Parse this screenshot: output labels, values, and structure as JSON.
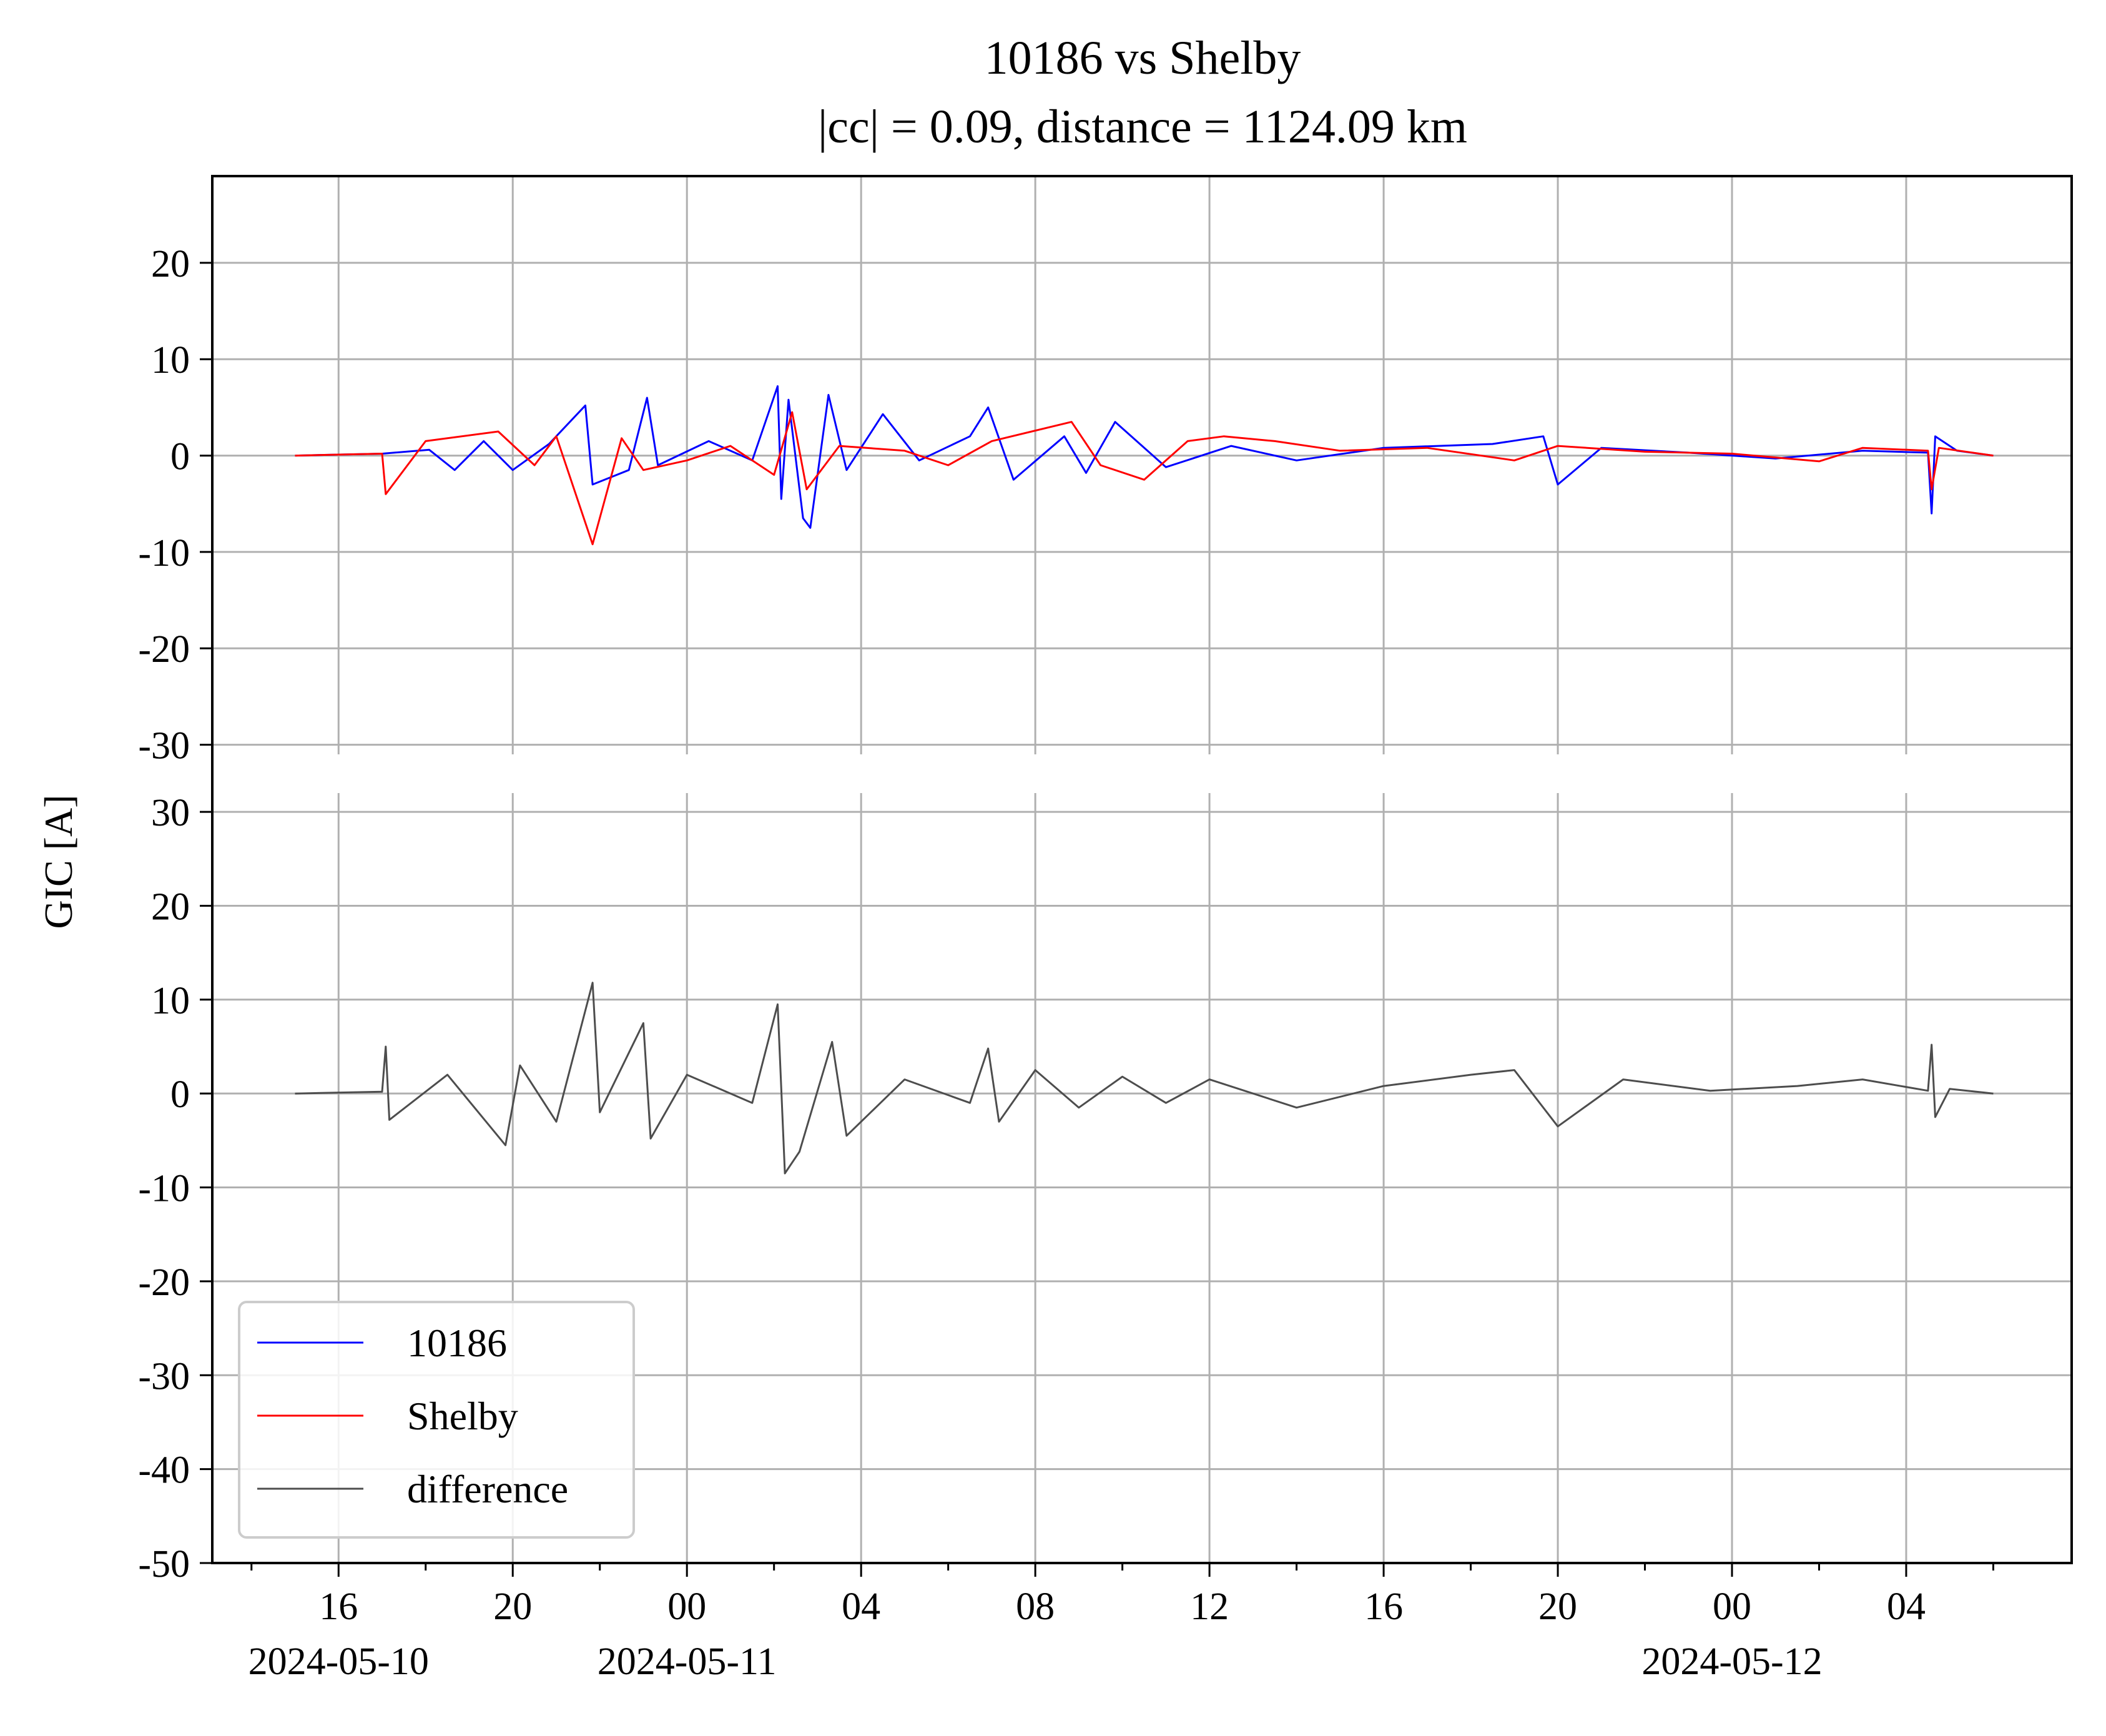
{
  "title": "10186 vs Shelby",
  "subtitle": "|cc| = 0.09, distance = 1124.09 km",
  "ylabel": "GIC [A]",
  "colors": {
    "series_10186": "#0000ff",
    "series_shelby": "#ff0000",
    "series_difference": "#4d4d4d",
    "grid": "#b0b0b0",
    "frame": "#000000"
  },
  "chart_data": [
    {
      "type": "line",
      "panel": "top",
      "x_unit": "time",
      "x_range": [
        "2024-05-10 13:06",
        "2024-05-12 07:48"
      ],
      "x_ticks": [
        "16",
        "20",
        "00",
        "04",
        "08",
        "12",
        "16",
        "20",
        "00",
        "04"
      ],
      "x_tick_times": [
        "2024-05-10 16:00",
        "2024-05-10 20:00",
        "2024-05-11 00:00",
        "2024-05-11 04:00",
        "2024-05-11 08:00",
        "2024-05-11 12:00",
        "2024-05-11 16:00",
        "2024-05-11 20:00",
        "2024-05-12 00:00",
        "2024-05-12 04:00"
      ],
      "date_labels": [
        "2024-05-10",
        "2024-05-11",
        "2024-05-12"
      ],
      "ylim": [
        -31,
        29
      ],
      "y_ticks": [
        -30,
        -20,
        -10,
        0,
        10,
        20
      ],
      "y_tick_labels": [
        "-30",
        "-20",
        "-10",
        "0",
        "10",
        "20"
      ],
      "grid": true,
      "series": [
        {
          "name": "10186",
          "color": "#0000ff",
          "points": [
            [
              "2024-05-10 15:00",
              0
            ],
            [
              "2024-05-10 17:00",
              0.2
            ],
            [
              "2024-05-10 18:05",
              0.6
            ],
            [
              "2024-05-10 18:40",
              -1.5
            ],
            [
              "2024-05-10 19:20",
              1.5
            ],
            [
              "2024-05-10 20:00",
              -1.5
            ],
            [
              "2024-05-10 20:50",
              1.2
            ],
            [
              "2024-05-10 21:40",
              5.2
            ],
            [
              "2024-05-10 21:50",
              -3.0
            ],
            [
              "2024-05-10 22:40",
              -1.5
            ],
            [
              "2024-05-10 23:05",
              6.0
            ],
            [
              "2024-05-10 23:20",
              -1.0
            ],
            [
              "2024-05-11 00:30",
              1.5
            ],
            [
              "2024-05-11 01:30",
              -0.5
            ],
            [
              "2024-05-11 02:05",
              7.2
            ],
            [
              "2024-05-11 02:10",
              -4.5
            ],
            [
              "2024-05-11 02:20",
              5.8
            ],
            [
              "2024-05-11 02:40",
              -6.5
            ],
            [
              "2024-05-11 02:50",
              -7.5
            ],
            [
              "2024-05-11 03:15",
              6.3
            ],
            [
              "2024-05-11 03:40",
              -1.5
            ],
            [
              "2024-05-11 04:30",
              4.3
            ],
            [
              "2024-05-11 05:20",
              -0.5
            ],
            [
              "2024-05-11 06:30",
              2.0
            ],
            [
              "2024-05-11 06:55",
              5.0
            ],
            [
              "2024-05-11 07:30",
              -2.5
            ],
            [
              "2024-05-11 08:40",
              2.0
            ],
            [
              "2024-05-11 09:10",
              -1.8
            ],
            [
              "2024-05-11 09:50",
              3.5
            ],
            [
              "2024-05-11 11:00",
              -1.2
            ],
            [
              "2024-05-11 12:30",
              1.0
            ],
            [
              "2024-05-11 14:00",
              -0.5
            ],
            [
              "2024-05-11 16:00",
              0.8
            ],
            [
              "2024-05-11 18:30",
              1.2
            ],
            [
              "2024-05-11 19:40",
              2.0
            ],
            [
              "2024-05-11 20:00",
              -3.0
            ],
            [
              "2024-05-11 21:00",
              0.8
            ],
            [
              "2024-05-11 23:00",
              0.3
            ],
            [
              "2024-05-12 01:00",
              -0.3
            ],
            [
              "2024-05-12 03:00",
              0.5
            ],
            [
              "2024-05-12 04:30",
              0.3
            ],
            [
              "2024-05-12 04:35",
              -6.0
            ],
            [
              "2024-05-12 04:40",
              2.0
            ],
            [
              "2024-05-12 05:10",
              0.5
            ],
            [
              "2024-05-12 06:00",
              0
            ]
          ]
        },
        {
          "name": "Shelby",
          "color": "#ff0000",
          "points": [
            [
              "2024-05-10 15:00",
              0
            ],
            [
              "2024-05-10 17:00",
              0.2
            ],
            [
              "2024-05-10 17:05",
              -4.0
            ],
            [
              "2024-05-10 18:00",
              1.5
            ],
            [
              "2024-05-10 19:40",
              2.5
            ],
            [
              "2024-05-10 20:30",
              -1.0
            ],
            [
              "2024-05-10 21:00",
              2.0
            ],
            [
              "2024-05-10 21:50",
              -9.2
            ],
            [
              "2024-05-10 22:30",
              1.8
            ],
            [
              "2024-05-10 23:00",
              -1.5
            ],
            [
              "2024-05-11 00:00",
              -0.5
            ],
            [
              "2024-05-11 01:00",
              1.0
            ],
            [
              "2024-05-11 02:00",
              -2.0
            ],
            [
              "2024-05-11 02:25",
              4.5
            ],
            [
              "2024-05-11 02:45",
              -3.5
            ],
            [
              "2024-05-11 03:30",
              1.0
            ],
            [
              "2024-05-11 05:00",
              0.5
            ],
            [
              "2024-05-11 06:00",
              -1.0
            ],
            [
              "2024-05-11 07:00",
              1.5
            ],
            [
              "2024-05-11 08:50",
              3.5
            ],
            [
              "2024-05-11 09:30",
              -1.0
            ],
            [
              "2024-05-11 10:30",
              -2.5
            ],
            [
              "2024-05-11 11:30",
              1.5
            ],
            [
              "2024-05-11 12:20",
              2.0
            ],
            [
              "2024-05-11 13:30",
              1.5
            ],
            [
              "2024-05-11 15:00",
              0.5
            ],
            [
              "2024-05-11 17:00",
              0.8
            ],
            [
              "2024-05-11 19:00",
              -0.5
            ],
            [
              "2024-05-11 20:00",
              1.0
            ],
            [
              "2024-05-11 22:00",
              0.4
            ],
            [
              "2024-05-12 00:00",
              0.2
            ],
            [
              "2024-05-12 02:00",
              -0.6
            ],
            [
              "2024-05-12 03:00",
              0.8
            ],
            [
              "2024-05-12 04:30",
              0.5
            ],
            [
              "2024-05-12 04:35",
              -3.5
            ],
            [
              "2024-05-12 04:45",
              0.8
            ],
            [
              "2024-05-12 06:00",
              0
            ]
          ]
        }
      ]
    },
    {
      "type": "line",
      "panel": "bottom",
      "x_unit": "time",
      "x_range": [
        "2024-05-10 13:06",
        "2024-05-12 07:48"
      ],
      "ylim": [
        -50,
        32
      ],
      "y_ticks": [
        -50,
        -40,
        -30,
        -20,
        -10,
        0,
        10,
        20,
        30
      ],
      "y_tick_labels": [
        "-50",
        "-40",
        "-30",
        "-20",
        "-10",
        "0",
        "10",
        "20",
        "30"
      ],
      "grid": true,
      "legend": "lower-left",
      "series": [
        {
          "name": "difference",
          "color": "#4d4d4d",
          "points": [
            [
              "2024-05-10 15:00",
              0
            ],
            [
              "2024-05-10 17:00",
              0.2
            ],
            [
              "2024-05-10 17:05",
              5.0
            ],
            [
              "2024-05-10 17:10",
              -2.8
            ],
            [
              "2024-05-10 18:30",
              2.0
            ],
            [
              "2024-05-10 19:50",
              -5.5
            ],
            [
              "2024-05-10 20:10",
              3.0
            ],
            [
              "2024-05-10 21:00",
              -3.0
            ],
            [
              "2024-05-10 21:50",
              11.8
            ],
            [
              "2024-05-10 22:00",
              -2.0
            ],
            [
              "2024-05-10 23:00",
              7.5
            ],
            [
              "2024-05-10 23:10",
              -4.8
            ],
            [
              "2024-05-11 00:00",
              2.0
            ],
            [
              "2024-05-11 01:30",
              -1.0
            ],
            [
              "2024-05-11 02:05",
              9.5
            ],
            [
              "2024-05-11 02:15",
              -8.5
            ],
            [
              "2024-05-11 02:35",
              -6.2
            ],
            [
              "2024-05-11 03:20",
              5.5
            ],
            [
              "2024-05-11 03:40",
              -4.5
            ],
            [
              "2024-05-11 05:00",
              1.5
            ],
            [
              "2024-05-11 06:30",
              -1.0
            ],
            [
              "2024-05-11 06:55",
              4.8
            ],
            [
              "2024-05-11 07:10",
              -3.0
            ],
            [
              "2024-05-11 08:00",
              2.5
            ],
            [
              "2024-05-11 09:00",
              -1.5
            ],
            [
              "2024-05-11 10:00",
              1.8
            ],
            [
              "2024-05-11 11:00",
              -1.0
            ],
            [
              "2024-05-11 12:00",
              1.5
            ],
            [
              "2024-05-11 14:00",
              -1.5
            ],
            [
              "2024-05-11 16:00",
              0.8
            ],
            [
              "2024-05-11 18:00",
              2.0
            ],
            [
              "2024-05-11 19:00",
              2.5
            ],
            [
              "2024-05-11 20:00",
              -3.5
            ],
            [
              "2024-05-11 21:30",
              1.5
            ],
            [
              "2024-05-11 23:30",
              0.3
            ],
            [
              "2024-05-12 01:30",
              0.8
            ],
            [
              "2024-05-12 03:00",
              1.5
            ],
            [
              "2024-05-12 04:30",
              0.3
            ],
            [
              "2024-05-12 04:35",
              5.2
            ],
            [
              "2024-05-12 04:40",
              -2.5
            ],
            [
              "2024-05-12 05:00",
              0.5
            ],
            [
              "2024-05-12 06:00",
              0
            ]
          ]
        }
      ]
    }
  ],
  "legend": {
    "items": [
      {
        "label": "10186",
        "color": "#0000ff"
      },
      {
        "label": "Shelby",
        "color": "#ff0000"
      },
      {
        "label": "difference",
        "color": "#4d4d4d"
      }
    ]
  }
}
